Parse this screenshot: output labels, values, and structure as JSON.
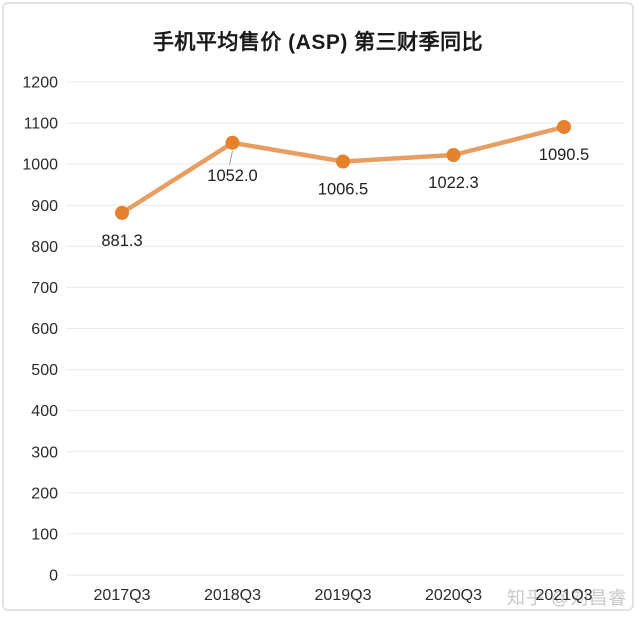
{
  "watermark": {
    "text": "知乎 @刘昌睿"
  },
  "chart_data": {
    "type": "line",
    "title": "手机平均售价 (ASP) 第三财季同比",
    "categories": [
      "2017Q3",
      "2018Q3",
      "2019Q3",
      "2020Q3",
      "2021Q3"
    ],
    "series": [
      {
        "name": "手机平均售价 ASP",
        "values": [
          881.3,
          1052.0,
          1006.5,
          1022.3,
          1090.5
        ],
        "point_labels": [
          "881.3",
          "1052.0",
          "1006.5",
          "1022.3",
          "1090.5"
        ]
      }
    ],
    "ylim": [
      0,
      1200
    ],
    "ytick_step": 100,
    "ytick_labels": [
      "0",
      "100",
      "200",
      "300",
      "400",
      "500",
      "600",
      "700",
      "800",
      "900",
      "1000",
      "1100",
      "1200"
    ],
    "grid": true,
    "legend": "none",
    "xlabel": "",
    "ylabel": "",
    "line_color": "#e79e60",
    "marker_color": "#e5802c",
    "gridline_color": "#e9e9e9",
    "tick_color": "#2b2b2b",
    "label_color": "#1f1f1f",
    "leader_line_color": "#9a9a9a",
    "leader_line_point_index": 1
  }
}
